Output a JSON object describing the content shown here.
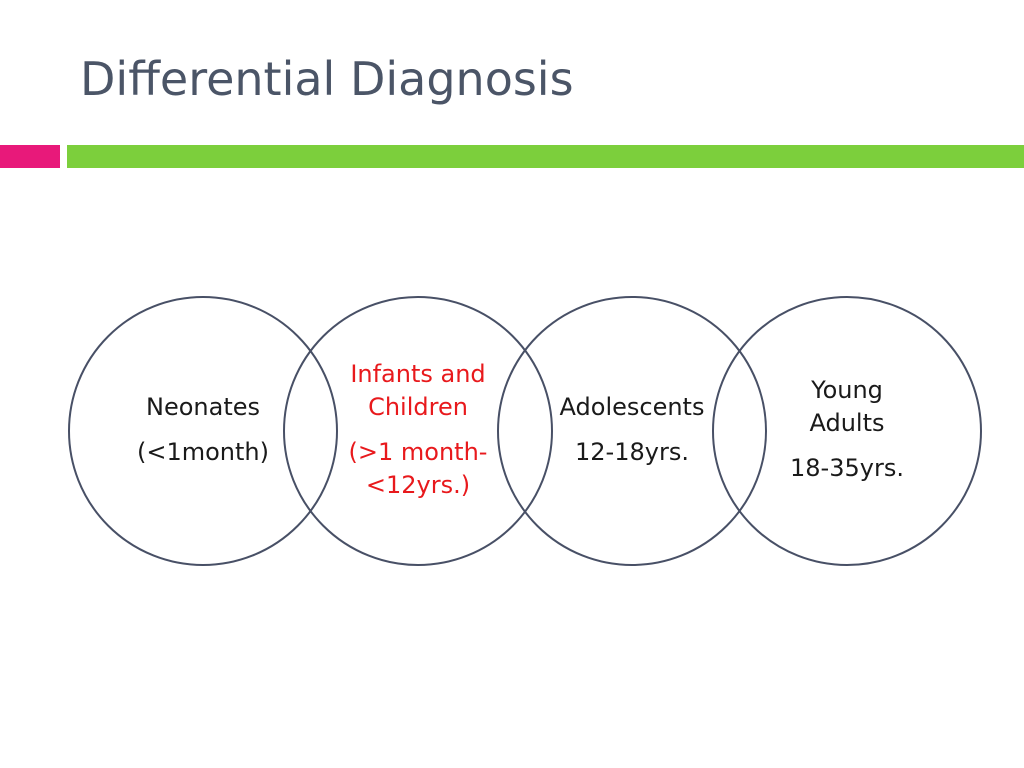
{
  "slide": {
    "title": "Differential Diagnosis"
  },
  "colors": {
    "title": "#4b5567",
    "accent_pink": "#e8197a",
    "accent_green": "#7ccf3c",
    "circle_stroke": "#485066",
    "highlight_text": "#e8191c"
  },
  "diagram": {
    "groups": [
      {
        "label": "Neonates",
        "range": "(<1month)",
        "highlight": false
      },
      {
        "label": "Infants and Children",
        "range": "(>1 month-<12yrs.)",
        "highlight": true
      },
      {
        "label": "Adolescents",
        "range": "12-18yrs.",
        "highlight": false
      },
      {
        "label": "Young Adults",
        "range": "18-35yrs.",
        "highlight": false
      }
    ]
  }
}
